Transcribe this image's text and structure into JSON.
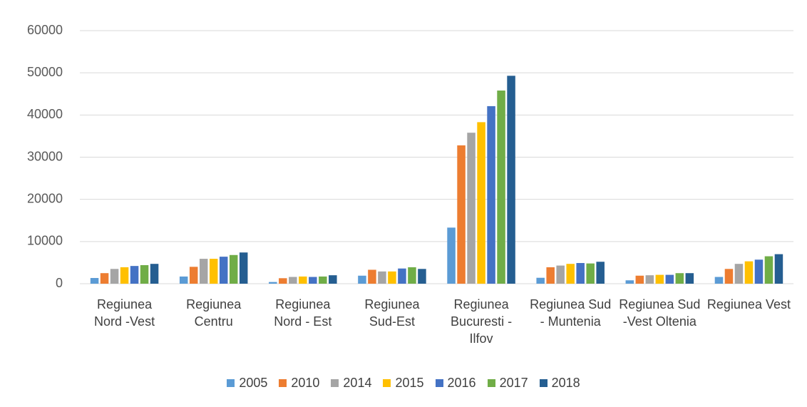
{
  "chart_data": {
    "type": "bar",
    "categories": [
      "Regiunea Nord -Vest",
      "Regiunea Centru",
      "Regiunea Nord - Est",
      "Regiunea Sud-Est",
      "Regiunea Bucuresti - Ilfov",
      "Regiunea Sud - Muntenia",
      "Regiunea Sud -Vest Oltenia",
      "Regiunea Vest"
    ],
    "series": [
      {
        "name": "2005",
        "color": "#5b9bd5",
        "values": [
          1350,
          1700,
          400,
          1900,
          13300,
          1400,
          800,
          1600
        ]
      },
      {
        "name": "2010",
        "color": "#ed7d31",
        "values": [
          2500,
          4000,
          1300,
          3300,
          32800,
          3900,
          1900,
          3500
        ]
      },
      {
        "name": "2014",
        "color": "#a5a5a5",
        "values": [
          3500,
          5900,
          1600,
          2900,
          35800,
          4300,
          2000,
          4700
        ]
      },
      {
        "name": "2015",
        "color": "#ffc000",
        "values": [
          3900,
          5900,
          1700,
          2900,
          38300,
          4700,
          2100,
          5300
        ]
      },
      {
        "name": "2016",
        "color": "#4472c4",
        "values": [
          4200,
          6400,
          1600,
          3600,
          42100,
          4900,
          2100,
          5700
        ]
      },
      {
        "name": "2017",
        "color": "#70ad47",
        "values": [
          4400,
          6800,
          1700,
          3900,
          45800,
          4800,
          2500,
          6500
        ]
      },
      {
        "name": "2018",
        "color": "#255e91",
        "values": [
          4700,
          7400,
          2000,
          3500,
          49300,
          5200,
          2500,
          7000
        ]
      }
    ],
    "ylim": [
      0,
      60000
    ],
    "yticks": [
      0,
      10000,
      20000,
      30000,
      40000,
      50000,
      60000
    ],
    "grid": true,
    "legend": "bottom"
  }
}
